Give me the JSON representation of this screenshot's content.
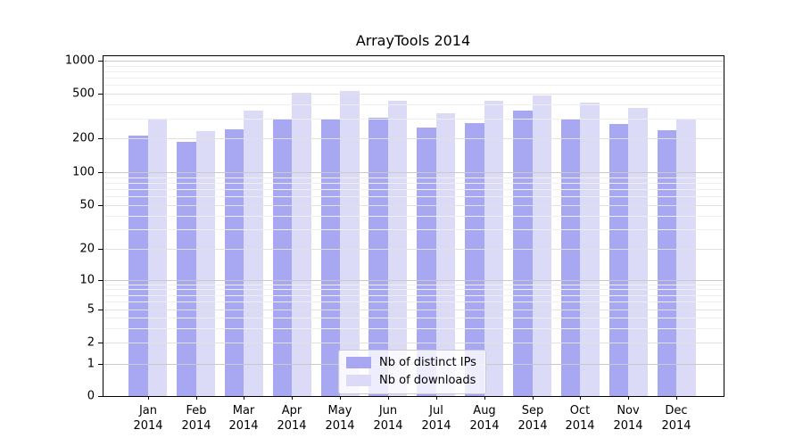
{
  "figure": {
    "title": "ArrayTools 2014"
  },
  "chart_data": {
    "type": "bar",
    "title": "ArrayTools 2014",
    "categories": [
      "Jan 2014",
      "Feb 2014",
      "Mar 2014",
      "Apr 2014",
      "May 2014",
      "Jun 2014",
      "Jul 2014",
      "Aug 2014",
      "Sep 2014",
      "Oct 2014",
      "Nov 2014",
      "Dec 2014"
    ],
    "series": [
      {
        "name": "Nb of distinct IPs",
        "color": "#a7a7f2",
        "values": [
          210,
          185,
          240,
          295,
          295,
          305,
          250,
          275,
          350,
          300,
          270,
          235
        ]
      },
      {
        "name": "Nb of downloads",
        "color": "#dbdbf8",
        "values": [
          300,
          230,
          350,
          510,
          530,
          435,
          335,
          430,
          480,
          420,
          375,
          300
        ]
      }
    ],
    "xlabel": "",
    "ylabel": "",
    "yscale": "symlog",
    "ylim": [
      0,
      1000
    ],
    "yticks": [
      0,
      1,
      2,
      5,
      10,
      20,
      50,
      100,
      200,
      500,
      1000
    ],
    "grid": "horizontal major + log minor, drawn over bars",
    "legend_position": "inside bottom-center"
  },
  "axis_style": {
    "grid_color_decade": "#c9c9c9",
    "grid_color_labeled": "#e1e1e1",
    "grid_color_minor": "#efefef"
  }
}
